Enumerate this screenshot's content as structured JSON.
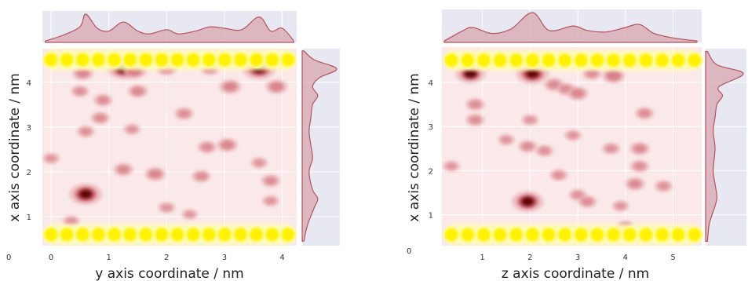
{
  "colors": {
    "panel_bg": "#e8e8f2",
    "plot_bg": "#fbe9e9",
    "grid": "#ffffff",
    "kde_fill": "#d9a7ad",
    "kde_line": "#b4525f",
    "hotspot_dark": "#5a0000",
    "hotspot_mid": "#c4495a",
    "hotspot_light": "#eab2b7",
    "wall_atom": "#fff200",
    "wall_glow": "#fffbb0"
  },
  "chart_data": [
    {
      "type": "heatmap",
      "subtype": "joint-kde",
      "xlabel": "y axis coordinate / nm",
      "ylabel": "x axis coordinate / nm",
      "xlim": [
        -0.15,
        4.25
      ],
      "ylim": [
        0.35,
        4.75
      ],
      "xticks": [
        "0",
        "1",
        "2",
        "3",
        "4"
      ],
      "yticks": [
        "1",
        "2",
        "3",
        "4"
      ],
      "yticks_values": [
        1,
        2,
        3,
        4
      ],
      "origin_label": "0",
      "wall_layers": [
        {
          "y": 0.6,
          "x_start": 0.0,
          "x_end": 4.1,
          "n_atoms": 16
        },
        {
          "y": 4.5,
          "x_start": 0.0,
          "x_end": 4.1,
          "n_atoms": 16
        }
      ],
      "hotspots": [
        {
          "x": 0.6,
          "y": 1.5,
          "intensity": 1.0
        },
        {
          "x": 1.25,
          "y": 4.3,
          "intensity": 0.95
        },
        {
          "x": 3.6,
          "y": 4.3,
          "intensity": 1.0
        },
        {
          "x": 1.45,
          "y": 4.25,
          "intensity": 0.5
        },
        {
          "x": 0.55,
          "y": 4.2,
          "intensity": 0.4
        },
        {
          "x": 2.0,
          "y": 4.3,
          "intensity": 0.35
        },
        {
          "x": 2.75,
          "y": 4.3,
          "intensity": 0.3
        },
        {
          "x": 3.9,
          "y": 3.9,
          "intensity": 0.45
        },
        {
          "x": 3.1,
          "y": 3.9,
          "intensity": 0.45
        },
        {
          "x": 1.5,
          "y": 3.8,
          "intensity": 0.35
        },
        {
          "x": 0.5,
          "y": 3.8,
          "intensity": 0.25
        },
        {
          "x": 0.9,
          "y": 3.6,
          "intensity": 0.3
        },
        {
          "x": 2.3,
          "y": 3.3,
          "intensity": 0.3
        },
        {
          "x": 0.85,
          "y": 3.2,
          "intensity": 0.3
        },
        {
          "x": 0.6,
          "y": 2.9,
          "intensity": 0.25
        },
        {
          "x": 1.4,
          "y": 2.95,
          "intensity": 0.2
        },
        {
          "x": 3.05,
          "y": 2.6,
          "intensity": 0.4
        },
        {
          "x": 2.7,
          "y": 2.55,
          "intensity": 0.3
        },
        {
          "x": 3.6,
          "y": 2.2,
          "intensity": 0.2
        },
        {
          "x": 1.25,
          "y": 2.05,
          "intensity": 0.35
        },
        {
          "x": 1.8,
          "y": 1.95,
          "intensity": 0.4
        },
        {
          "x": 2.6,
          "y": 1.9,
          "intensity": 0.3
        },
        {
          "x": 3.8,
          "y": 1.8,
          "intensity": 0.3
        },
        {
          "x": 3.8,
          "y": 1.35,
          "intensity": 0.2
        },
        {
          "x": 0.0,
          "y": 2.3,
          "intensity": 0.2
        },
        {
          "x": 2.0,
          "y": 1.2,
          "intensity": 0.2
        },
        {
          "x": 0.35,
          "y": 0.9,
          "intensity": 0.2
        },
        {
          "x": 2.4,
          "y": 1.05,
          "intensity": 0.15
        }
      ],
      "marginal_x": {
        "x": [
          -0.1,
          0.2,
          0.5,
          0.6,
          0.8,
          1.0,
          1.25,
          1.5,
          1.7,
          2.0,
          2.2,
          2.5,
          2.75,
          3.0,
          3.3,
          3.6,
          3.8,
          4.0,
          4.2
        ],
        "density": [
          0.05,
          0.25,
          0.55,
          1.0,
          0.5,
          0.4,
          0.72,
          0.4,
          0.3,
          0.45,
          0.3,
          0.4,
          0.55,
          0.5,
          0.45,
          0.9,
          0.4,
          0.5,
          0.05
        ]
      },
      "marginal_y": {
        "y": [
          0.45,
          0.8,
          1.2,
          1.4,
          1.6,
          2.0,
          2.3,
          2.6,
          2.9,
          3.2,
          3.5,
          3.7,
          3.9,
          4.1,
          4.3,
          4.5,
          4.7
        ],
        "density": [
          0.05,
          0.15,
          0.35,
          0.45,
          0.3,
          0.2,
          0.3,
          0.25,
          0.2,
          0.25,
          0.3,
          0.45,
          0.3,
          0.5,
          1.0,
          0.35,
          0.05
        ]
      }
    },
    {
      "type": "heatmap",
      "subtype": "joint-kde",
      "xlabel": "z axis coordinate / nm",
      "ylabel": "x axis coordinate / nm",
      "xlim": [
        0.15,
        5.6
      ],
      "ylim": [
        0.3,
        4.8
      ],
      "xticks": [
        "1",
        "2",
        "3",
        "4",
        "5"
      ],
      "xticks_values": [
        1,
        2,
        3,
        4,
        5
      ],
      "yticks": [
        "1",
        "2",
        "3",
        "4"
      ],
      "yticks_values": [
        1,
        2,
        3,
        4
      ],
      "origin_label": "0",
      "wall_layers": [
        {
          "y": 0.55,
          "x_start": 0.35,
          "x_end": 5.45,
          "n_atoms": 16
        },
        {
          "y": 4.5,
          "x_start": 0.35,
          "x_end": 5.45,
          "n_atoms": 16
        }
      ],
      "hotspots": [
        {
          "x": 0.75,
          "y": 4.2,
          "intensity": 0.85
        },
        {
          "x": 2.05,
          "y": 4.2,
          "intensity": 1.0
        },
        {
          "x": 1.95,
          "y": 1.3,
          "intensity": 0.95
        },
        {
          "x": 3.75,
          "y": 4.15,
          "intensity": 0.5
        },
        {
          "x": 3.3,
          "y": 4.2,
          "intensity": 0.3
        },
        {
          "x": 2.5,
          "y": 3.95,
          "intensity": 0.35
        },
        {
          "x": 2.75,
          "y": 3.85,
          "intensity": 0.3
        },
        {
          "x": 3.0,
          "y": 3.75,
          "intensity": 0.4
        },
        {
          "x": 4.4,
          "y": 3.3,
          "intensity": 0.3
        },
        {
          "x": 0.85,
          "y": 3.5,
          "intensity": 0.3
        },
        {
          "x": 0.85,
          "y": 3.15,
          "intensity": 0.3
        },
        {
          "x": 2.0,
          "y": 3.15,
          "intensity": 0.2
        },
        {
          "x": 1.5,
          "y": 2.7,
          "intensity": 0.2
        },
        {
          "x": 2.9,
          "y": 2.8,
          "intensity": 0.2
        },
        {
          "x": 1.95,
          "y": 2.55,
          "intensity": 0.3
        },
        {
          "x": 2.3,
          "y": 2.45,
          "intensity": 0.25
        },
        {
          "x": 3.7,
          "y": 2.5,
          "intensity": 0.25
        },
        {
          "x": 4.3,
          "y": 2.5,
          "intensity": 0.35
        },
        {
          "x": 0.35,
          "y": 2.1,
          "intensity": 0.2
        },
        {
          "x": 4.3,
          "y": 2.1,
          "intensity": 0.3
        },
        {
          "x": 2.6,
          "y": 1.9,
          "intensity": 0.25
        },
        {
          "x": 4.2,
          "y": 1.7,
          "intensity": 0.35
        },
        {
          "x": 4.8,
          "y": 1.65,
          "intensity": 0.25
        },
        {
          "x": 3.0,
          "y": 1.45,
          "intensity": 0.25
        },
        {
          "x": 3.2,
          "y": 1.3,
          "intensity": 0.3
        },
        {
          "x": 3.9,
          "y": 1.2,
          "intensity": 0.2
        },
        {
          "x": 4.0,
          "y": 0.75,
          "intensity": 0.15
        }
      ],
      "marginal_x": {
        "x": [
          0.2,
          0.6,
          0.8,
          1.2,
          1.6,
          2.05,
          2.4,
          2.9,
          3.2,
          3.6,
          4.0,
          4.3,
          4.6,
          5.0,
          5.5
        ],
        "density": [
          0.05,
          0.4,
          0.5,
          0.3,
          0.45,
          1.0,
          0.4,
          0.55,
          0.4,
          0.35,
          0.5,
          0.6,
          0.3,
          0.15,
          0.05
        ]
      },
      "marginal_y": {
        "y": [
          0.4,
          0.8,
          1.2,
          1.4,
          1.7,
          2.0,
          2.5,
          2.9,
          3.2,
          3.5,
          3.7,
          3.9,
          4.2,
          4.4,
          4.7
        ],
        "density": [
          0.05,
          0.1,
          0.25,
          0.3,
          0.25,
          0.2,
          0.25,
          0.2,
          0.25,
          0.3,
          0.45,
          0.35,
          1.0,
          0.3,
          0.05
        ]
      }
    }
  ]
}
